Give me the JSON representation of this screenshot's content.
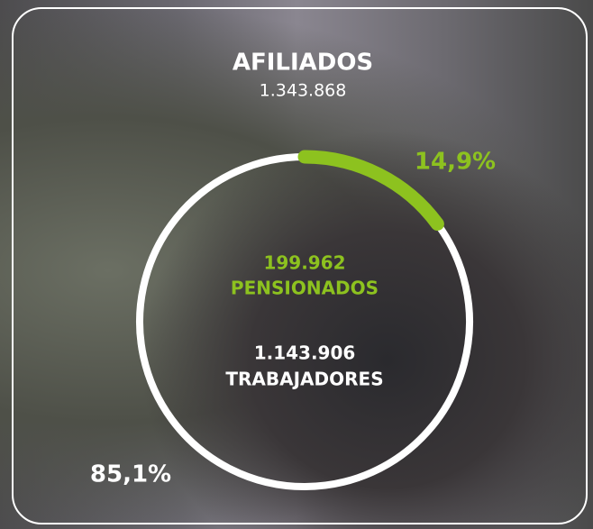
{
  "chart_data": {
    "type": "donut",
    "title": "AFILIADOS",
    "subtitle": "1.343.868",
    "categories": [
      "PENSIONADOS",
      "TRABAJADORES"
    ],
    "values": [
      14.9,
      85.1
    ],
    "value_labels": [
      "14,9%",
      "85,1%"
    ],
    "count_labels": [
      "199.962",
      "1.143.906"
    ],
    "colors": [
      "#8dc21f",
      "#ffffff"
    ]
  }
}
